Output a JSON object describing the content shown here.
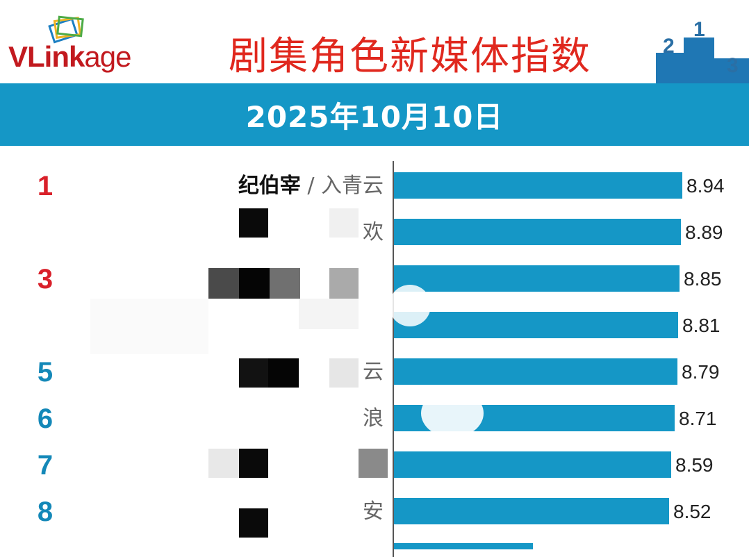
{
  "header": {
    "logo_brand": "VLink",
    "logo_suffix": "age",
    "title": "剧集角色新媒体指数",
    "podium_numbers": [
      "2",
      "1",
      "3"
    ]
  },
  "date": "2025年10月10日",
  "chart_data": {
    "type": "bar",
    "orientation": "horizontal",
    "categories": [
      {
        "rank": "1",
        "character": "纪伯宰",
        "show": "入青云"
      },
      {
        "rank": "",
        "character": "",
        "show": "欢"
      },
      {
        "rank": "3",
        "character": "",
        "show": ""
      },
      {
        "rank": "",
        "character": "",
        "show": ""
      },
      {
        "rank": "5",
        "character": "",
        "show": "云"
      },
      {
        "rank": "6",
        "character": "",
        "show": "浪"
      },
      {
        "rank": "7",
        "character": "",
        "show": ""
      },
      {
        "rank": "8",
        "character": "",
        "show": "安"
      }
    ],
    "values": [
      8.94,
      8.89,
      8.85,
      8.81,
      8.79,
      8.71,
      8.59,
      8.52
    ],
    "xlim": [
      0,
      8.94
    ],
    "legend": "none",
    "colors": {
      "bar": "#1597c6",
      "rank_top": "#d9202a",
      "rank_rest": "#1488b8"
    }
  }
}
